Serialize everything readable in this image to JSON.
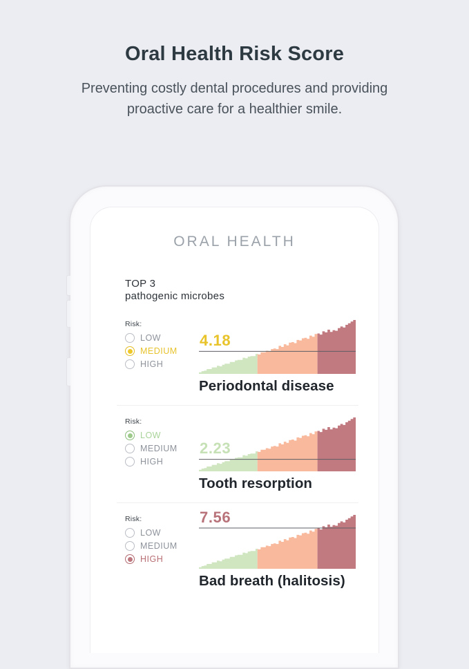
{
  "page": {
    "background": "#ecedf2",
    "title": "Oral Health Risk Score",
    "subtitle_lines": [
      "Preventing costly dental procedures and providing",
      "proactive care for a healthier smile."
    ]
  },
  "phone": {
    "app_header": "ORAL HEALTH",
    "list_header_line1": "TOP 3",
    "list_header_line2": "pathogenic microbes",
    "risk_label": "Risk:",
    "risk_options": [
      "LOW",
      "MEDIUM",
      "HIGH"
    ],
    "sections": [
      {
        "name": "Periodontal disease",
        "score": "4.18",
        "score_value": 4.18,
        "risk_level": "MEDIUM",
        "colors": {
          "ring": "#e3bd25",
          "dot": "#eec829",
          "label": "#e7c32e",
          "score": "#e8c329"
        }
      },
      {
        "name": "Tooth resorption",
        "score": "2.23",
        "score_value": 2.23,
        "risk_level": "LOW",
        "colors": {
          "ring": "#8abc79",
          "dot": "#9ecb8b",
          "label": "#a9d399",
          "score": "#c7e1b6"
        }
      },
      {
        "name": "Bad breath (halitosis)",
        "score": "7.56",
        "score_value": 7.56,
        "risk_level": "HIGH",
        "colors": {
          "ring": "#b26a71",
          "dot": "#bd777e",
          "label": "#b76f74",
          "score": "#b8727a"
        }
      }
    ]
  },
  "chart_data": {
    "type": "area",
    "title": "pathogenic microbe risk distribution",
    "scale_max": 10,
    "threshold_line_color": "#5b5e63",
    "scores": [
      4.18,
      2.23,
      7.56
    ],
    "zones": [
      {
        "label": "low",
        "end": 0.373,
        "color": "#cfe6c1"
      },
      {
        "label": "medium",
        "end": 0.756,
        "color": "#f8b99d"
      },
      {
        "label": "high",
        "end": 1.0,
        "color": "#c17a80"
      }
    ],
    "heights": [
      0.03,
      0.05,
      0.06,
      0.09,
      0.09,
      0.12,
      0.12,
      0.15,
      0.14,
      0.17,
      0.19,
      0.19,
      0.22,
      0.22,
      0.25,
      0.26,
      0.26,
      0.3,
      0.29,
      0.32,
      0.33,
      0.33,
      0.37,
      0.36,
      0.4,
      0.4,
      0.43,
      0.42,
      0.46,
      0.47,
      0.46,
      0.52,
      0.5,
      0.55,
      0.53,
      0.58,
      0.59,
      0.57,
      0.63,
      0.62,
      0.66,
      0.67,
      0.65,
      0.71,
      0.69,
      0.74,
      0.75,
      0.73,
      0.79,
      0.77,
      0.82,
      0.78,
      0.81,
      0.8,
      0.85,
      0.88,
      0.86,
      0.91,
      0.94,
      0.97,
      1.0
    ]
  }
}
